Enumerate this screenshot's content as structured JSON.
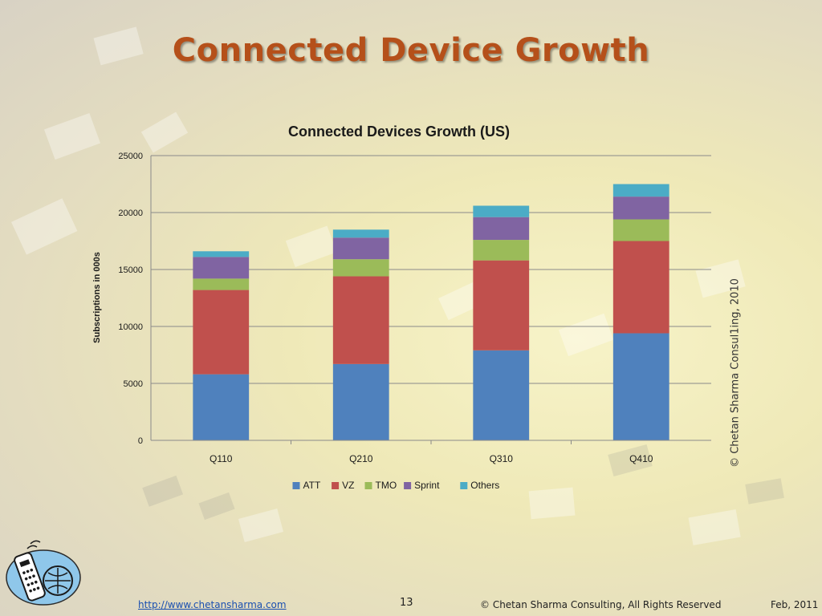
{
  "slide": {
    "title": "Connected Device Growth",
    "vertical_copyright": "© Chetan Sharma Consul1ing, 2010"
  },
  "footer": {
    "url": "http://www.chetansharma.com",
    "page_number": "13",
    "copyright": "© Chetan Sharma Consulting, All Rights Reserved",
    "date": "Feb, 2011"
  },
  "colors": {
    "title": "#b5501a",
    "ATT": "#4f81bd",
    "VZ": "#c0504d",
    "TMO": "#9bbb59",
    "Sprint": "#8064a2",
    "Others": "#4bacc6"
  },
  "chart_data": {
    "type": "bar",
    "stacked": true,
    "title": "Connected Devices Growth (US)",
    "ylabel": "Subscriptions in 000s",
    "xlabel": "",
    "categories": [
      "Q110",
      "Q210",
      "Q310",
      "Q410"
    ],
    "ylim": [
      0,
      25000
    ],
    "yticks": [
      0,
      5000,
      10000,
      15000,
      20000,
      25000
    ],
    "grid": true,
    "legend_position": "bottom",
    "series": [
      {
        "name": "ATT",
        "color": "#4f81bd",
        "values": [
          5800,
          6700,
          7900,
          9400
        ]
      },
      {
        "name": "VZ",
        "color": "#c0504d",
        "values": [
          7400,
          7700,
          7900,
          8100
        ]
      },
      {
        "name": "TMO",
        "color": "#9bbb59",
        "values": [
          1000,
          1500,
          1800,
          1900
        ]
      },
      {
        "name": "Sprint",
        "color": "#8064a2",
        "values": [
          1900,
          1900,
          2000,
          2000
        ]
      },
      {
        "name": "Others",
        "color": "#4bacc6",
        "values": [
          500,
          700,
          1000,
          1100
        ]
      }
    ]
  }
}
